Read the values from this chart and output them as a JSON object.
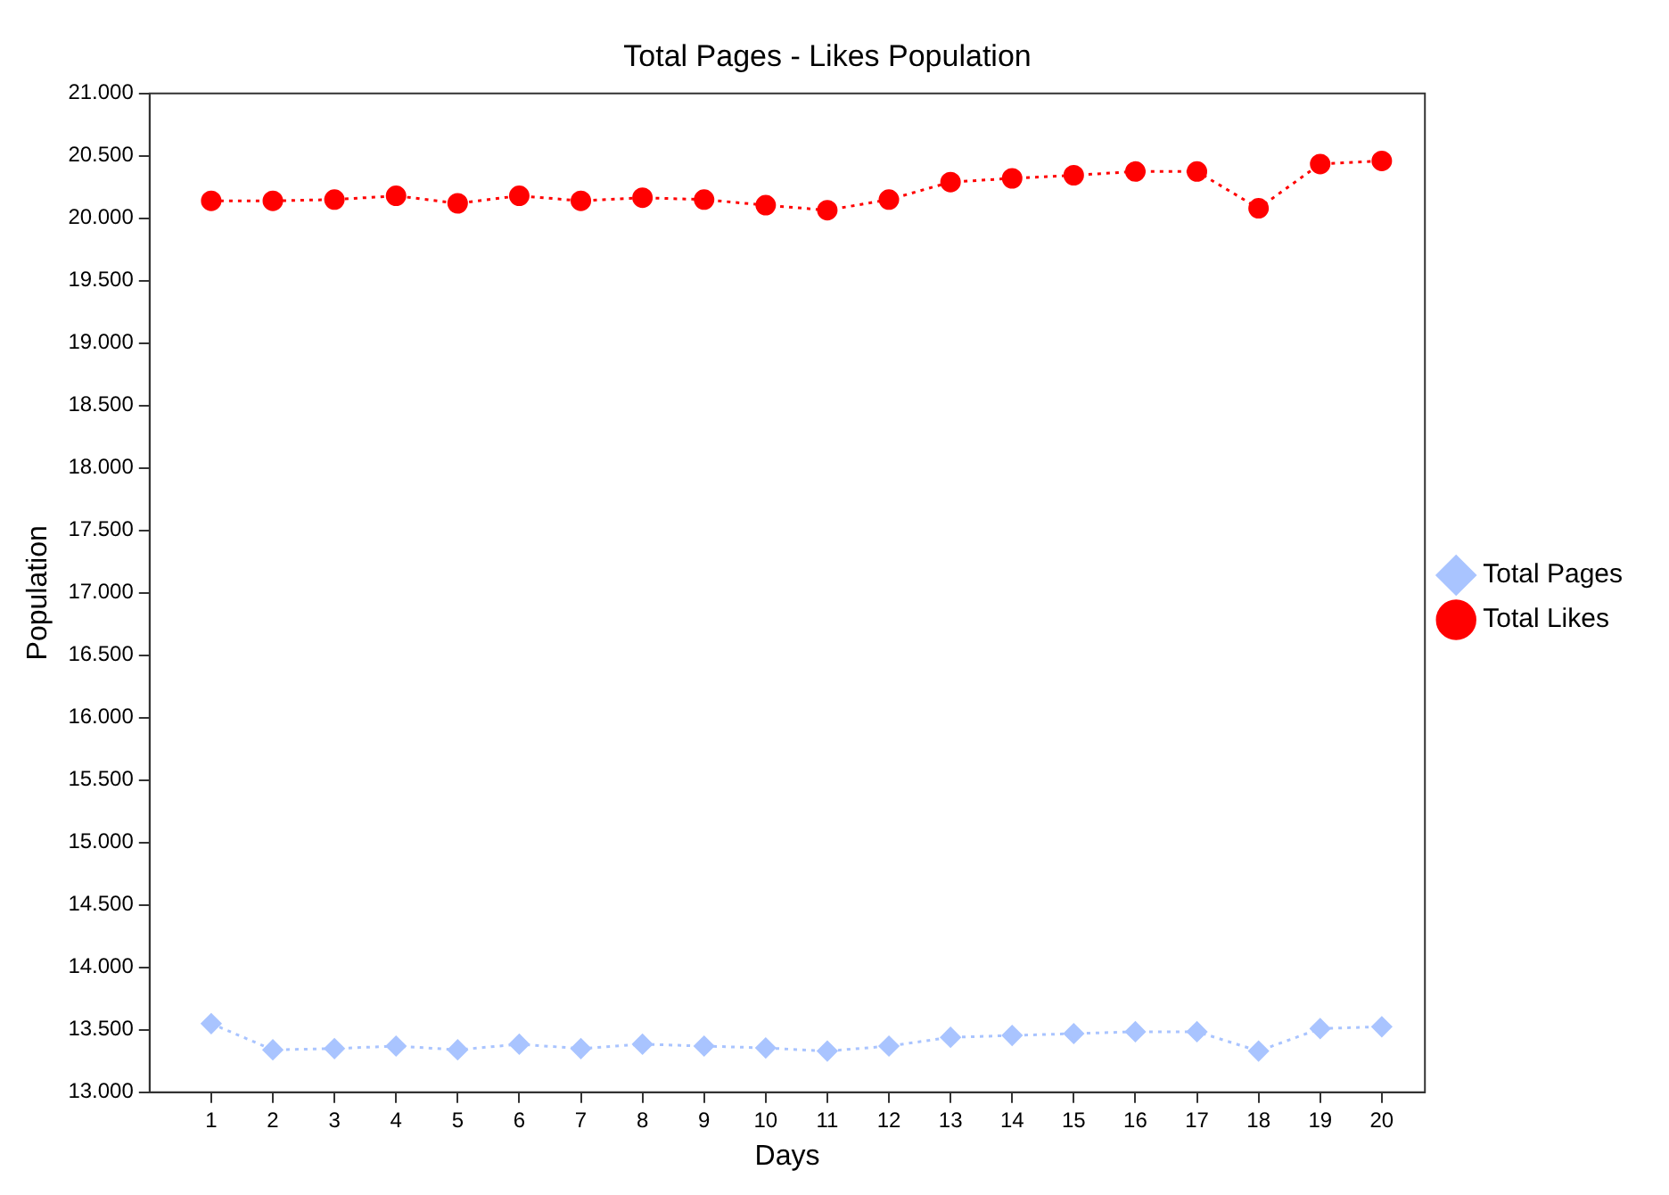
{
  "chart_data": {
    "type": "line",
    "title": "Total Pages - Likes Population",
    "xlabel": "Days",
    "ylabel": "Population",
    "x": [
      1,
      2,
      3,
      4,
      5,
      6,
      7,
      8,
      9,
      10,
      11,
      12,
      13,
      14,
      15,
      16,
      17,
      18,
      19,
      20
    ],
    "series": [
      {
        "name": "Total Pages",
        "color": "#a9c4ff",
        "marker": "diamond",
        "values": [
          13550,
          13340,
          13350,
          13370,
          13340,
          13385,
          13350,
          13385,
          13370,
          13355,
          13330,
          13370,
          13440,
          13455,
          13470,
          13485,
          13485,
          13330,
          13510,
          13525
        ]
      },
      {
        "name": "Total Likes",
        "color": "#ff0000",
        "marker": "circle",
        "values": [
          20140,
          20140,
          20150,
          20180,
          20120,
          20180,
          20140,
          20165,
          20150,
          20105,
          20065,
          20150,
          20290,
          20320,
          20345,
          20375,
          20375,
          20080,
          20435,
          20460
        ]
      }
    ],
    "xlim": [
      0,
      20.7
    ],
    "xticks": [
      1,
      2,
      3,
      4,
      5,
      6,
      7,
      8,
      9,
      10,
      11,
      12,
      13,
      14,
      15,
      16,
      17,
      18,
      19,
      20
    ],
    "ylim": [
      13000,
      21000
    ],
    "yticks": [
      {
        "value": 13000,
        "label": "13.000"
      },
      {
        "value": 13500,
        "label": "13.500"
      },
      {
        "value": 14000,
        "label": "14.000"
      },
      {
        "value": 14500,
        "label": "14.500"
      },
      {
        "value": 15000,
        "label": "15.000"
      },
      {
        "value": 15500,
        "label": "15.500"
      },
      {
        "value": 16000,
        "label": "16.000"
      },
      {
        "value": 16500,
        "label": "16.500"
      },
      {
        "value": 17000,
        "label": "17.000"
      },
      {
        "value": 17500,
        "label": "17.500"
      },
      {
        "value": 18000,
        "label": "18.000"
      },
      {
        "value": 18500,
        "label": "18.500"
      },
      {
        "value": 19000,
        "label": "19.000"
      },
      {
        "value": 19500,
        "label": "19.500"
      },
      {
        "value": 20000,
        "label": "20.000"
      },
      {
        "value": 20500,
        "label": "20.500"
      },
      {
        "value": 21000,
        "label": "21.000"
      }
    ],
    "grid": false,
    "legend": "right",
    "line_style": "dotted"
  }
}
